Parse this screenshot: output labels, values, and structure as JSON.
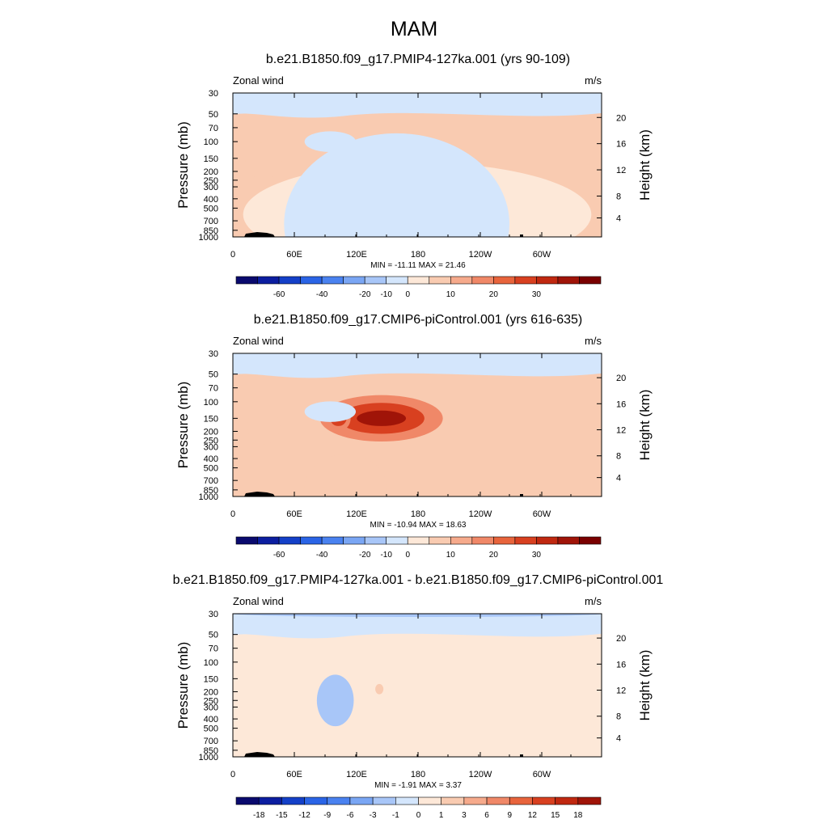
{
  "figure": {
    "title": "MAM",
    "background": "#ffffff"
  },
  "chart_data": [
    {
      "type": "heatmap",
      "title": "b.e21.B1850.f09_g17.PMIP4-127ka.001 (yrs 90-109)",
      "left_label": "Zonal wind",
      "right_label": "m/s",
      "ylabel": "Pressure (mb)",
      "ylabel_right": "Height (km)",
      "x_ticks": [
        "0",
        "60E",
        "120E",
        "180",
        "120W",
        "60W"
      ],
      "y_ticks": [
        "30",
        "50",
        "70",
        "100",
        "150",
        "200",
        "250",
        "300",
        "400",
        "500",
        "700",
        "850",
        "1000"
      ],
      "y_right_ticks": [
        "20",
        "16",
        "12",
        "8",
        "4"
      ],
      "stats_text": "MIN = -11.11  MAX =  21.46",
      "min": -11.11,
      "max": 21.46,
      "colorbar_labels": [
        "-60",
        "-40",
        "-20",
        "-10",
        "0",
        "10",
        "20",
        "30"
      ],
      "colorbar_colors": [
        "#0a0a6e",
        "#0c1ea0",
        "#1440c8",
        "#2a64e6",
        "#4a82f0",
        "#7aa6f4",
        "#a8c6f8",
        "#d4e6fc",
        "#fde8d8",
        "#f9cbb1",
        "#f6aa8c",
        "#f08868",
        "#e8643c",
        "#d84020",
        "#c02810",
        "#a01408",
        "#7a0000"
      ],
      "features": [
        {
          "cx": 150,
          "cy": 160,
          "a": 55,
          "b": 16,
          "level": 3
        },
        {
          "cx": 150,
          "cy": 160,
          "a": 40,
          "b": 11,
          "level": 5
        },
        {
          "cx": 150,
          "cy": 160,
          "a": 22,
          "b": 6,
          "level": 7
        },
        {
          "cx": 150,
          "cy": 160,
          "a": 12,
          "b": 3,
          "level": 8
        },
        {
          "cx": 103,
          "cy": 160,
          "a": 13,
          "b": 10,
          "level": 3
        },
        {
          "cx": 103,
          "cy": 160,
          "a": 9,
          "b": 6,
          "level": 5
        },
        {
          "cx": 30,
          "cy": 160,
          "a": 18,
          "b": 14,
          "level": 1
        },
        {
          "cx": 125,
          "cy": 850,
          "a": 25,
          "b": 25,
          "level": 1
        },
        {
          "cx": 95,
          "cy": 100,
          "a": 25,
          "b": 8,
          "level": -1
        },
        {
          "cx": 180,
          "cy": 30,
          "a": 150,
          "b": 1,
          "level": -1
        },
        {
          "cx": 180,
          "cy": 600,
          "a": 170,
          "b": 40,
          "level": 0
        },
        {
          "cx": 160,
          "cy": 750,
          "a": 110,
          "b": 70,
          "level": -1
        }
      ]
    },
    {
      "type": "heatmap",
      "title": "b.e21.B1850.f09_g17.CMIP6-piControl.001 (yrs 616-635)",
      "left_label": "Zonal wind",
      "right_label": "m/s",
      "ylabel": "Pressure (mb)",
      "ylabel_right": "Height (km)",
      "x_ticks": [
        "0",
        "60E",
        "120E",
        "180",
        "120W",
        "60W"
      ],
      "y_ticks": [
        "30",
        "50",
        "70",
        "100",
        "150",
        "200",
        "250",
        "300",
        "400",
        "500",
        "700",
        "850",
        "1000"
      ],
      "y_right_ticks": [
        "20",
        "16",
        "12",
        "8",
        "4"
      ],
      "stats_text": "MIN = -10.94  MAX =  18.63",
      "min": -10.94,
      "max": 18.63,
      "colorbar_labels": [
        "-60",
        "-40",
        "-20",
        "-10",
        "0",
        "10",
        "20",
        "30"
      ],
      "colorbar_colors": [
        "#0a0a6e",
        "#0c1ea0",
        "#1440c8",
        "#2a64e6",
        "#4a82f0",
        "#7aa6f4",
        "#a8c6f8",
        "#d4e6fc",
        "#fde8d8",
        "#f9cbb1",
        "#f6aa8c",
        "#f08868",
        "#e8643c",
        "#d84020",
        "#c02810",
        "#a01408",
        "#7a0000"
      ],
      "features": [
        {
          "cx": 145,
          "cy": 150,
          "a": 60,
          "b": 18,
          "level": 3
        },
        {
          "cx": 145,
          "cy": 150,
          "a": 42,
          "b": 12,
          "level": 5
        },
        {
          "cx": 145,
          "cy": 150,
          "a": 24,
          "b": 6,
          "level": 7
        },
        {
          "cx": 103,
          "cy": 150,
          "a": 12,
          "b": 10,
          "level": 3
        },
        {
          "cx": 103,
          "cy": 150,
          "a": 8,
          "b": 6,
          "level": 5
        },
        {
          "cx": 30,
          "cy": 180,
          "a": 16,
          "b": 14,
          "level": 1
        },
        {
          "cx": 110,
          "cy": 800,
          "a": 40,
          "b": 25,
          "level": 1
        },
        {
          "cx": 95,
          "cy": 130,
          "a": 25,
          "b": 8,
          "level": -1
        },
        {
          "cx": 180,
          "cy": 30,
          "a": 150,
          "b": 1,
          "level": -1
        }
      ]
    },
    {
      "type": "heatmap",
      "title": "b.e21.B1850.f09_g17.PMIP4-127ka.001 - b.e21.B1850.f09_g17.CMIP6-piControl.001",
      "left_label": "Zonal wind",
      "right_label": "m/s",
      "ylabel": "Pressure (mb)",
      "ylabel_right": "Height (km)",
      "x_ticks": [
        "0",
        "60E",
        "120E",
        "180",
        "120W",
        "60W"
      ],
      "y_ticks": [
        "30",
        "50",
        "70",
        "100",
        "150",
        "200",
        "250",
        "300",
        "400",
        "500",
        "700",
        "850",
        "1000"
      ],
      "y_right_ticks": [
        "20",
        "16",
        "12",
        "8",
        "4"
      ],
      "stats_text": "MIN = -1.91  MAX =  3.37",
      "min": -1.91,
      "max": 3.37,
      "colorbar_labels": [
        "-18",
        "-15",
        "-12",
        "-9",
        "-6",
        "-3",
        "-1",
        "0",
        "1",
        "3",
        "6",
        "9",
        "12",
        "15",
        "18"
      ],
      "colorbar_colors": [
        "#0a0a6e",
        "#0c1ea0",
        "#1440c8",
        "#2a64e6",
        "#4a82f0",
        "#7aa6f4",
        "#a8c6f8",
        "#d4e6fc",
        "#fde8d8",
        "#f9cbb1",
        "#f6aa8c",
        "#f08868",
        "#e8643c",
        "#d84020",
        "#c02810",
        "#a01408"
      ],
      "features": [
        {
          "cx": 30,
          "cy": 175,
          "a": 20,
          "b": 15,
          "level": 1
        },
        {
          "cx": 140,
          "cy": 200,
          "a": 25,
          "b": 20,
          "level": 1
        },
        {
          "cx": 143,
          "cy": 190,
          "a": 4,
          "b": 4,
          "level": 2
        },
        {
          "cx": 100,
          "cy": 250,
          "a": 18,
          "b": 20,
          "level": -2
        },
        {
          "cx": 180,
          "cy": 30,
          "a": 180,
          "b": 1,
          "level": -2
        }
      ]
    }
  ]
}
